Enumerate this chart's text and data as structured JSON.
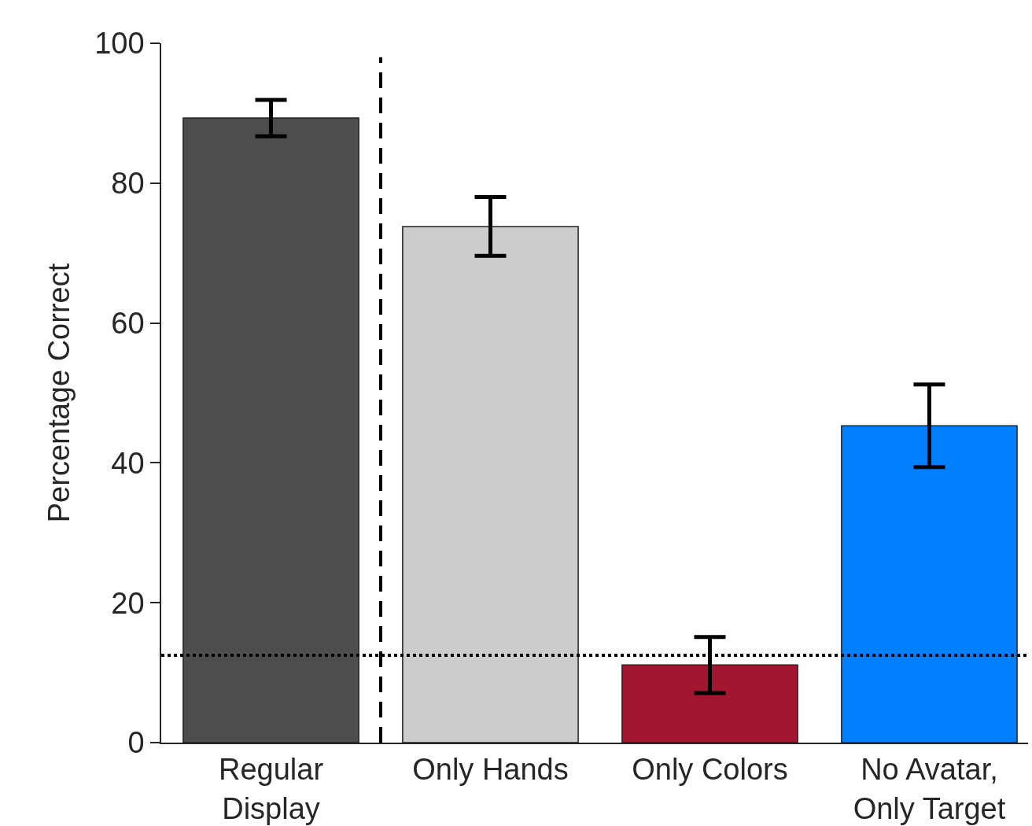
{
  "chart_data": {
    "type": "bar",
    "ylabel": "Percentage Correct",
    "categories": [
      "Regular\nDisplay",
      "Only Hands",
      "Only Colors",
      "No Avatar,\nOnly Target"
    ],
    "values": [
      89.3,
      73.8,
      11.1,
      45.3
    ],
    "colors": [
      "#4d4d4d",
      "#cccccc",
      "#a21630",
      "#0080ff"
    ],
    "errors": [
      2.6,
      4.2,
      4.0,
      5.9
    ],
    "ylim": [
      0,
      100
    ],
    "yticks": [
      0,
      20,
      40,
      60,
      80,
      100
    ],
    "grid": false,
    "ref_lines": [
      {
        "axis": "y",
        "value": 12.5,
        "line_style": "dotted",
        "color": "#000000"
      }
    ]
  }
}
